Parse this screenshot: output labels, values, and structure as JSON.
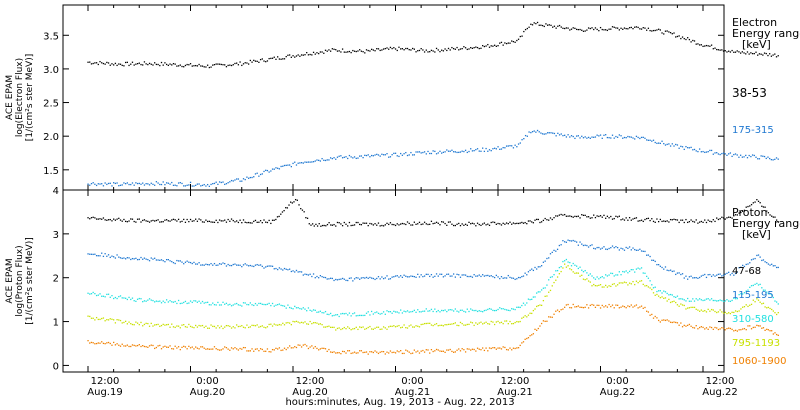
{
  "chart_data": [
    {
      "type": "scatter",
      "panel": "electron",
      "ylabel_lines": [
        "ACE EPAM",
        "log(Electron Flux)",
        "[1/(cm²s ster MeV)]"
      ],
      "legend_title": [
        "Electron",
        "Energy ranges",
        "[keV]"
      ],
      "ylim": [
        1.2,
        3.95
      ],
      "yticks": [
        "1.5",
        "2.0",
        "2.5",
        "3.0",
        "3.5"
      ],
      "ytick_values": [
        1.5,
        2.0,
        2.5,
        3.0,
        3.5
      ],
      "series": [
        {
          "name": "38-53",
          "color": "#000000",
          "x": [
            0,
            0.2,
            0.4,
            0.6,
            0.8,
            1.0,
            1.2,
            1.4,
            1.6,
            1.8,
            2.0,
            2.2,
            2.4,
            2.6,
            2.8,
            2.88,
            3.0,
            3.2,
            3.4,
            3.6,
            3.8,
            4.0,
            4.2,
            4.4,
            4.5
          ],
          "y": [
            3.1,
            3.07,
            3.08,
            3.06,
            3.04,
            3.08,
            3.15,
            3.22,
            3.28,
            3.26,
            3.3,
            3.27,
            3.3,
            3.34,
            3.42,
            3.68,
            3.64,
            3.58,
            3.6,
            3.62,
            3.52,
            3.36,
            3.25,
            3.22,
            3.2
          ]
        },
        {
          "name": "175-315",
          "color": "#1f78d1",
          "x": [
            0,
            0.2,
            0.4,
            0.6,
            0.8,
            1.0,
            1.2,
            1.4,
            1.6,
            1.8,
            2.0,
            2.2,
            2.4,
            2.6,
            2.8,
            2.88,
            3.0,
            3.2,
            3.4,
            3.6,
            3.8,
            4.0,
            4.2,
            4.4,
            4.5
          ],
          "y": [
            1.3,
            1.28,
            1.3,
            1.29,
            1.28,
            1.35,
            1.5,
            1.62,
            1.68,
            1.7,
            1.72,
            1.76,
            1.78,
            1.8,
            1.86,
            2.08,
            2.04,
            1.98,
            2.0,
            1.98,
            1.86,
            1.78,
            1.72,
            1.68,
            1.65
          ]
        }
      ]
    },
    {
      "type": "scatter",
      "panel": "proton",
      "ylabel_lines": [
        "ACE EPAM",
        "log(Proton Flux)",
        "[1/(cm²s ster MeV)]"
      ],
      "legend_title": [
        "Proton",
        "Energy ranges",
        "[keV]"
      ],
      "ylim": [
        -0.15,
        4.0
      ],
      "yticks": [
        "0",
        "1",
        "2",
        "3",
        "4"
      ],
      "ytick_values": [
        0,
        1,
        2,
        3,
        4
      ],
      "series": [
        {
          "name": "47-68",
          "color": "#000000",
          "x": [
            0,
            0.3,
            0.6,
            0.9,
            1.2,
            1.35,
            1.45,
            1.6,
            1.9,
            2.2,
            2.5,
            2.8,
            2.95,
            3.1,
            3.4,
            3.7,
            4.0,
            4.2,
            4.35,
            4.5
          ],
          "y": [
            3.35,
            3.3,
            3.3,
            3.3,
            3.28,
            3.8,
            3.2,
            3.22,
            3.22,
            3.25,
            3.22,
            3.25,
            3.3,
            3.42,
            3.38,
            3.3,
            3.28,
            3.4,
            3.75,
            3.25
          ]
        },
        {
          "name": "115-195",
          "color": "#1f78d1",
          "x": [
            0,
            0.3,
            0.6,
            0.9,
            1.2,
            1.4,
            1.6,
            1.9,
            2.2,
            2.5,
            2.8,
            2.95,
            3.1,
            3.3,
            3.6,
            3.7,
            3.9,
            4.2,
            4.35,
            4.5
          ],
          "y": [
            2.55,
            2.45,
            2.35,
            2.3,
            2.25,
            2.1,
            1.95,
            2.0,
            2.05,
            2.05,
            2.0,
            2.3,
            2.85,
            2.7,
            2.65,
            2.3,
            2.0,
            2.1,
            2.5,
            2.2
          ]
        },
        {
          "name": "310-580",
          "color": "#22e0e0",
          "x": [
            0,
            0.3,
            0.6,
            0.9,
            1.2,
            1.4,
            1.6,
            1.9,
            2.2,
            2.5,
            2.8,
            2.95,
            3.1,
            3.3,
            3.6,
            3.7,
            3.9,
            4.2,
            4.35,
            4.5
          ],
          "y": [
            1.65,
            1.5,
            1.45,
            1.4,
            1.38,
            1.3,
            1.15,
            1.2,
            1.25,
            1.25,
            1.3,
            1.7,
            2.4,
            2.0,
            2.2,
            1.7,
            1.5,
            1.5,
            1.9,
            1.4
          ]
        },
        {
          "name": "795-1193",
          "color": "#c8e000",
          "x": [
            0,
            0.3,
            0.6,
            0.9,
            1.2,
            1.4,
            1.6,
            1.9,
            2.2,
            2.5,
            2.8,
            2.95,
            3.1,
            3.3,
            3.6,
            3.7,
            3.9,
            4.2,
            4.35,
            4.5
          ],
          "y": [
            1.1,
            0.95,
            0.9,
            0.88,
            0.9,
            1.0,
            0.85,
            0.85,
            0.92,
            0.95,
            1.0,
            1.4,
            2.3,
            1.8,
            1.9,
            1.6,
            1.3,
            1.2,
            1.5,
            1.15
          ]
        },
        {
          "name": "1060-1900",
          "color": "#f08000",
          "x": [
            0,
            0.3,
            0.6,
            0.9,
            1.2,
            1.4,
            1.6,
            1.9,
            2.2,
            2.5,
            2.8,
            2.95,
            3.1,
            3.3,
            3.6,
            3.7,
            3.9,
            4.2,
            4.35,
            4.5
          ],
          "y": [
            0.55,
            0.45,
            0.4,
            0.38,
            0.35,
            0.45,
            0.3,
            0.3,
            0.32,
            0.35,
            0.4,
            0.95,
            1.35,
            1.35,
            1.35,
            1.05,
            0.9,
            0.8,
            0.9,
            0.7
          ]
        }
      ]
    }
  ],
  "xaxis": {
    "ticks": [
      {
        "label": [
          "12:00",
          "Aug.19"
        ],
        "day": 0
      },
      {
        "label": [
          "0:00",
          "Aug.20"
        ],
        "day": 0.5
      },
      {
        "label": [
          "12:00",
          "Aug.20"
        ],
        "day": 1.0
      },
      {
        "label": [
          "0:00",
          "Aug.21"
        ],
        "day": 1.5
      },
      {
        "label": [
          "12:00",
          "Aug.21"
        ],
        "day": 2.0
      },
      {
        "label": [
          "0:00",
          "Aug.22"
        ],
        "day": 2.5
      },
      {
        "label": [
          "12:00",
          "Aug.22"
        ],
        "day": 3.0
      }
    ],
    "title": "hours:minutes, Aug. 19, 2013 - Aug. 22, 2013"
  }
}
